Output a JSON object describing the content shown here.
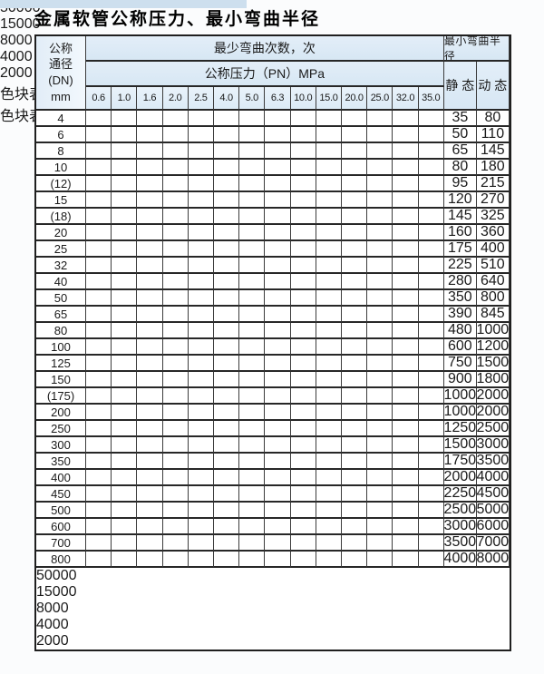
{
  "title": "金属软管公称压力、最小弯曲半径",
  "table": {
    "header": {
      "dn_lines": [
        "公称",
        "通径",
        "(DN)",
        "mm"
      ],
      "bend_cycles": "最少弯曲次数，次",
      "pressure": "公称压力（PN）MPa",
      "pressure_ticks": [
        "0.6",
        "1.0",
        "1.6",
        "2.0",
        "2.5",
        "4.0",
        "5.0",
        "6.3",
        "10.0",
        "15.0",
        "20.0",
        "25.0",
        "32.0",
        "35.0"
      ],
      "min_radius": "最小弯曲半径",
      "static": "静 态",
      "dynamic": "动 态"
    },
    "rows": [
      {
        "dn": "4",
        "st": "35",
        "dy": "80",
        "zones": [
          [
            4,
            "bl"
          ],
          [
            7,
            "bm"
          ],
          [
            13,
            "bd"
          ]
        ]
      },
      {
        "dn": "6",
        "st": "50",
        "dy": "110",
        "zones": [
          [
            4,
            "bl"
          ],
          [
            7,
            "bm"
          ],
          [
            11,
            "bd"
          ]
        ]
      },
      {
        "dn": "8",
        "st": "65",
        "dy": "145",
        "zones": [
          [
            4,
            "bl"
          ],
          [
            7,
            "bm"
          ],
          [
            11,
            "bd"
          ]
        ]
      },
      {
        "dn": "10",
        "st": "80",
        "dy": "180",
        "zones": [
          [
            4,
            "bl"
          ],
          [
            7,
            "bm"
          ],
          [
            11,
            "bd"
          ]
        ]
      },
      {
        "dn": "(12)",
        "st": "95",
        "dy": "215",
        "zones": [
          [
            4,
            "bl"
          ],
          [
            7,
            "bm"
          ],
          [
            11,
            "bd"
          ]
        ]
      },
      {
        "dn": "15",
        "st": "120",
        "dy": "270",
        "zones": [
          [
            4,
            "bl"
          ],
          [
            7,
            "bm"
          ],
          [
            11,
            "bd"
          ]
        ]
      },
      {
        "dn": "(18)",
        "st": "145",
        "dy": "325",
        "zones": [
          [
            4,
            "bl"
          ],
          [
            7,
            "bm"
          ],
          [
            10,
            "bd"
          ]
        ]
      },
      {
        "dn": "20",
        "st": "160",
        "dy": "360",
        "zones": [
          [
            4,
            "bl"
          ],
          [
            7,
            "bm"
          ],
          [
            10,
            "bd"
          ]
        ]
      },
      {
        "dn": "25",
        "st": "175",
        "dy": "400",
        "zones": [
          [
            4,
            "bl"
          ],
          [
            7,
            "bm"
          ],
          [
            9,
            "bd"
          ]
        ]
      },
      {
        "dn": "32",
        "st": "225",
        "dy": "510",
        "zones": [
          [
            4,
            "bl"
          ],
          [
            7,
            "bm"
          ],
          [
            8,
            "bd"
          ]
        ]
      },
      {
        "dn": "40",
        "st": "280",
        "dy": "640",
        "zones": [
          [
            4,
            "bl"
          ],
          [
            6,
            "bm"
          ],
          [
            8,
            "bd"
          ]
        ]
      },
      {
        "dn": "50",
        "st": "350",
        "dy": "800",
        "zones": [
          [
            3,
            "bl"
          ],
          [
            6,
            "bm"
          ],
          [
            7,
            "bd"
          ]
        ]
      },
      {
        "dn": "65",
        "st": "390",
        "dy": "845",
        "zones": [
          [
            1,
            "bl"
          ],
          [
            6,
            "bm"
          ],
          [
            7,
            "bd"
          ]
        ]
      },
      {
        "dn": "80",
        "st": "480",
        "dy": "1000",
        "zones": [
          [
            1,
            "bl"
          ],
          [
            5,
            "bm"
          ],
          [
            6,
            "bd"
          ]
        ]
      },
      {
        "dn": "100",
        "st": "600",
        "dy": "1200",
        "zones": [
          [
            5,
            "gl"
          ]
        ]
      },
      {
        "dn": "125",
        "st": "750",
        "dy": "1500",
        "zones": [
          [
            5,
            "gl"
          ]
        ]
      },
      {
        "dn": "150",
        "st": "900",
        "dy": "1800",
        "zones": [
          [
            5,
            "gl"
          ]
        ]
      },
      {
        "dn": "(175)",
        "st": "1000",
        "dy": "2000",
        "zones": [
          [
            5,
            "gl"
          ]
        ]
      },
      {
        "dn": "200",
        "st": "1000",
        "dy": "2000",
        "zones": [
          [
            5,
            "gl"
          ]
        ]
      },
      {
        "dn": "250",
        "st": "1250",
        "dy": "2500",
        "zones": [
          [
            5,
            "gl"
          ]
        ]
      },
      {
        "dn": "300",
        "st": "1500",
        "dy": "3000",
        "zones": [
          [
            5,
            "gl"
          ]
        ]
      },
      {
        "dn": "350",
        "st": "1750",
        "dy": "3500",
        "zones": [
          [
            4,
            "gd"
          ]
        ]
      },
      {
        "dn": "400",
        "st": "2000",
        "dy": "4000",
        "zones": [
          [
            4,
            "gd"
          ]
        ]
      },
      {
        "dn": "450",
        "st": "2250",
        "dy": "4500",
        "zones": [
          [
            4,
            "gd"
          ]
        ]
      },
      {
        "dn": "500",
        "st": "2500",
        "dy": "5000",
        "zones": [
          [
            4,
            "gd"
          ]
        ]
      },
      {
        "dn": "600",
        "st": "3000",
        "dy": "6000",
        "zones": [
          [
            3,
            "gd"
          ]
        ]
      },
      {
        "dn": "700",
        "st": "3500",
        "dy": "7000",
        "zones": [
          [
            2,
            "gd"
          ]
        ]
      },
      {
        "dn": "800",
        "st": "4000",
        "dy": "8000",
        "zones": [
          [
            2,
            "gd"
          ]
        ]
      }
    ]
  },
  "cycle_legend": {
    "bl": 50000,
    "bm": 15000,
    "bd": 8000,
    "gl": 4000,
    "gd": 2000
  },
  "region_labels": [
    {
      "id": "cycles-50000",
      "text": "50000"
    },
    {
      "id": "cycles-15000",
      "text": "15000"
    },
    {
      "id": "cycles-8000",
      "text": "8000"
    },
    {
      "id": "cycles-4000",
      "text": "4000"
    },
    {
      "id": "cycles-2000",
      "text": "2000"
    }
  ],
  "legend": {
    "present_label": "色块表示有此规格",
    "absent_label": "色块表示无此规格",
    "swatches": [
      {
        "text": "50000",
        "key": "bl"
      },
      {
        "text": "15000",
        "key": "bm"
      },
      {
        "text": "8000",
        "key": "bd"
      },
      {
        "text": "4000",
        "key": "gl"
      },
      {
        "text": "2000",
        "key": "gd"
      }
    ]
  },
  "colors": {
    "blue_light": "#d8eaf8",
    "blue_mid": "#a9d6f0",
    "blue_dark": "#6fc0e9",
    "green_light": "#d5e8d6",
    "green_dark": "#93cba2",
    "hatch_bg": "#edf4fb",
    "border": "#2b2b2b"
  }
}
